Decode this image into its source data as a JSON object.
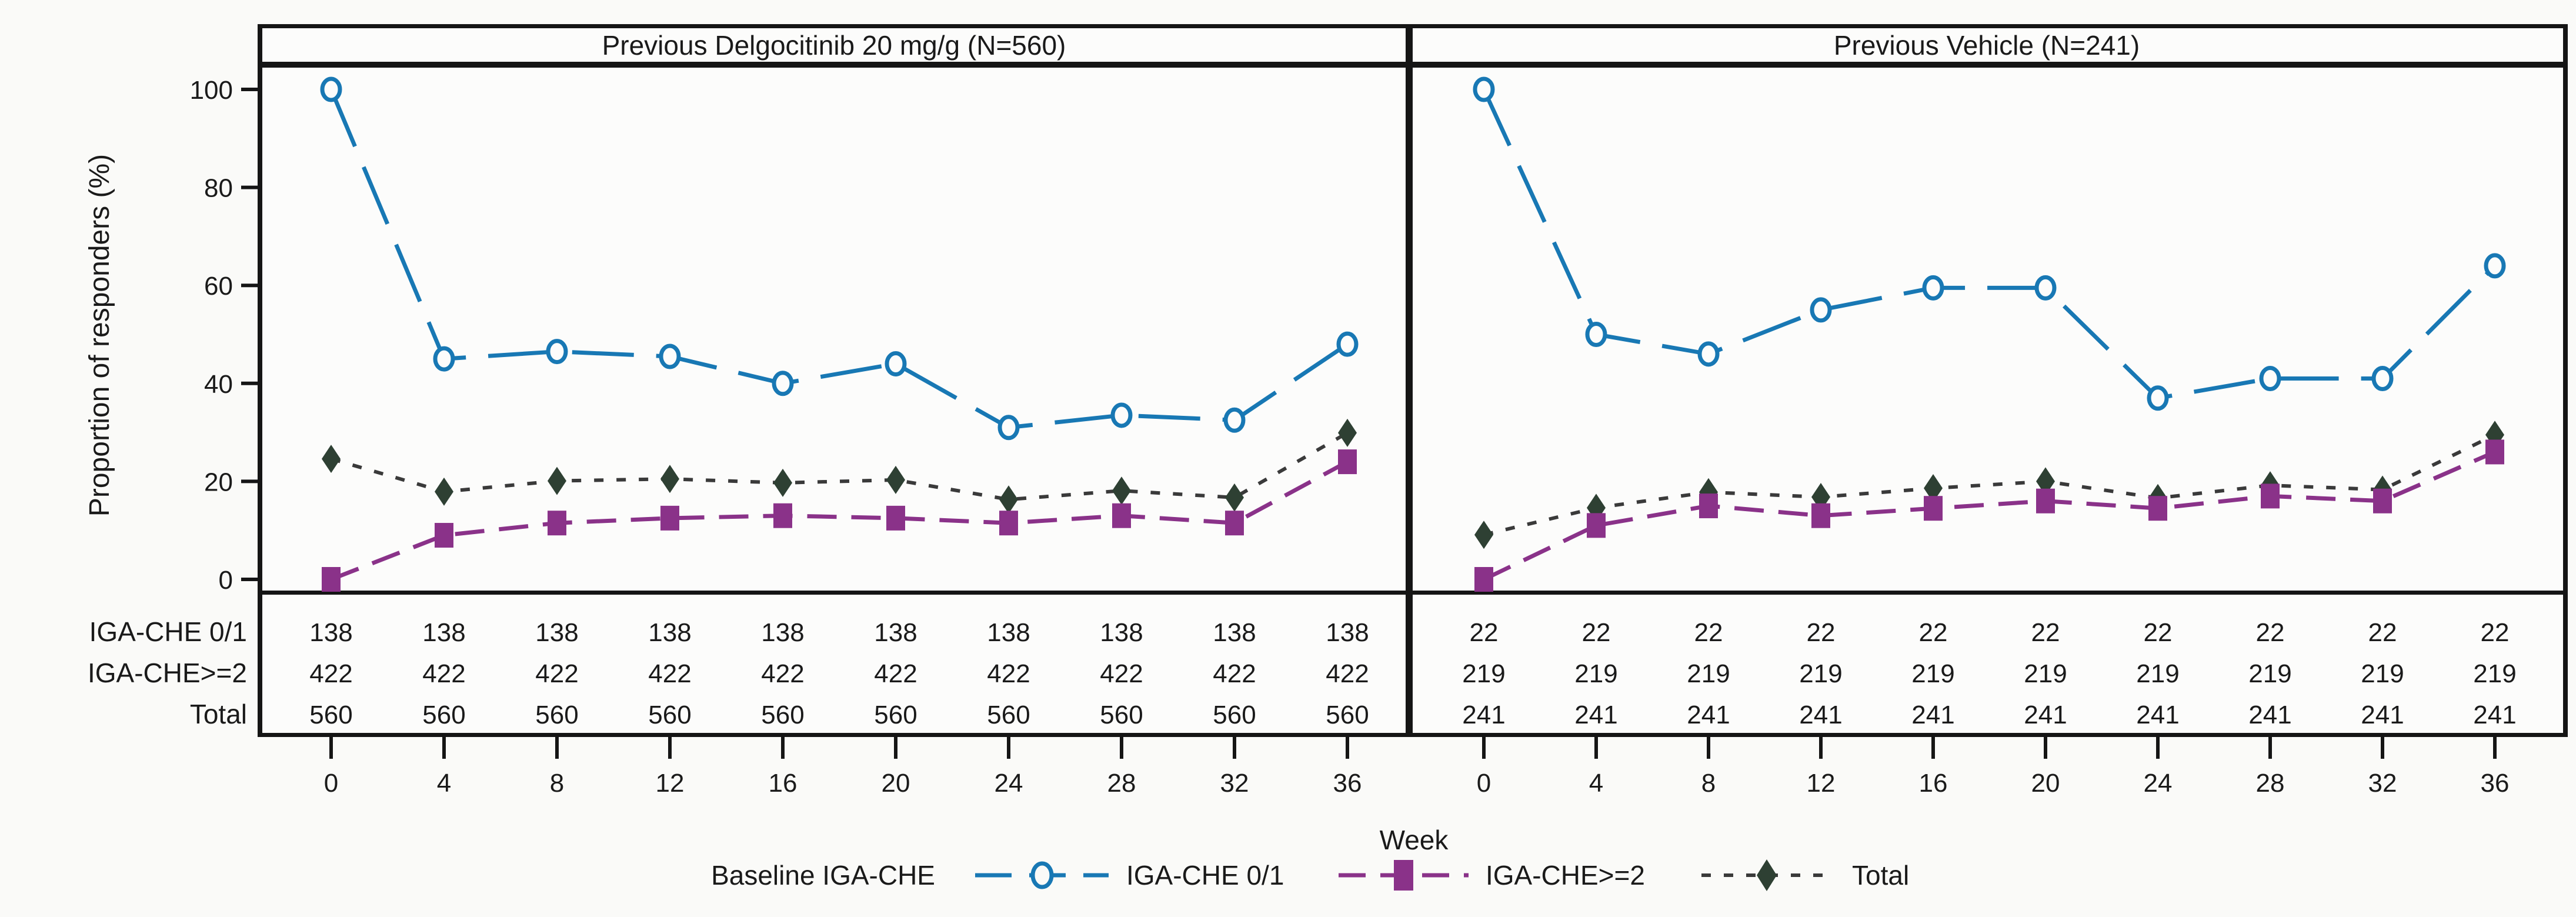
{
  "figure": {
    "kind": "responder proportion line chart with number-at-risk table",
    "panels": [
      "Previous Delgocitinib 20 mg/g (N=560)",
      "Previous Vehicle (N=241)"
    ]
  },
  "y_axis": {
    "label": "Proportion of responders (%)",
    "ticks": [
      0,
      20,
      40,
      60,
      80,
      100
    ],
    "min": 0,
    "max": 100
  },
  "x_axis": {
    "label": "Week",
    "ticks": [
      0,
      4,
      8,
      12,
      16,
      20,
      24,
      28,
      32,
      36
    ]
  },
  "legend": {
    "title": "Baseline IGA-CHE",
    "items": [
      {
        "label": "IGA-CHE 0/1",
        "marker": "open-circle",
        "line": "long-dash",
        "color_key": "series_blue"
      },
      {
        "label": "IGA-CHE>=2",
        "marker": "filled-square",
        "line": "dash",
        "color_key": "series_purple"
      },
      {
        "label": "Total",
        "marker": "filled-diamond",
        "line": "dot",
        "color_key": "series_total"
      }
    ]
  },
  "at_risk_rows": [
    "IGA-CHE 0/1",
    "IGA-CHE>=2",
    "Total"
  ],
  "colors": {
    "series_blue": "#1878B4",
    "series_purple": "#8A3289",
    "series_total_line": "#3A3A3A",
    "series_total_marker": "#2E4033",
    "panel_bg": "#FCFCFB",
    "page_bg": "#FAFAF8",
    "text": "#1A1A1A"
  },
  "chart_data": [
    {
      "type": "line",
      "panel": "Previous Delgocitinib 20 mg/g (N=560)",
      "x": [
        0,
        4,
        8,
        12,
        16,
        20,
        24,
        28,
        32,
        36
      ],
      "series": [
        {
          "name": "IGA-CHE 0/1",
          "values": [
            100,
            45,
            46.5,
            45.5,
            40,
            44,
            31,
            33.5,
            32.5,
            48
          ]
        },
        {
          "name": "IGA-CHE>=2",
          "values": [
            0,
            9,
            11.5,
            12.5,
            13,
            12.5,
            11.5,
            13,
            11.5,
            24
          ]
        },
        {
          "name": "Total",
          "values": [
            24.6,
            17.9,
            20.1,
            20.5,
            19.7,
            20.3,
            16.3,
            18.1,
            16.7,
            29.9
          ]
        }
      ],
      "at_risk": [
        [
          138,
          138,
          138,
          138,
          138,
          138,
          138,
          138,
          138,
          138
        ],
        [
          422,
          422,
          422,
          422,
          422,
          422,
          422,
          422,
          422,
          422
        ],
        [
          560,
          560,
          560,
          560,
          560,
          560,
          560,
          560,
          560,
          560
        ]
      ]
    },
    {
      "type": "line",
      "panel": "Previous Vehicle (N=241)",
      "x": [
        0,
        4,
        8,
        12,
        16,
        20,
        24,
        28,
        32,
        36
      ],
      "series": [
        {
          "name": "IGA-CHE 0/1",
          "values": [
            100,
            50,
            46,
            55,
            59.5,
            59.5,
            37,
            41,
            41,
            64
          ]
        },
        {
          "name": "IGA-CHE>=2",
          "values": [
            0,
            11,
            15,
            13,
            14.5,
            16,
            14.5,
            17,
            16,
            26
          ]
        },
        {
          "name": "Total",
          "values": [
            9.1,
            14.6,
            17.8,
            16.8,
            18.6,
            20,
            16.6,
            19.2,
            18.3,
            29.5
          ]
        }
      ],
      "at_risk": [
        [
          22,
          22,
          22,
          22,
          22,
          22,
          22,
          22,
          22,
          22
        ],
        [
          219,
          219,
          219,
          219,
          219,
          219,
          219,
          219,
          219,
          219
        ],
        [
          241,
          241,
          241,
          241,
          241,
          241,
          241,
          241,
          241,
          241
        ]
      ]
    }
  ]
}
